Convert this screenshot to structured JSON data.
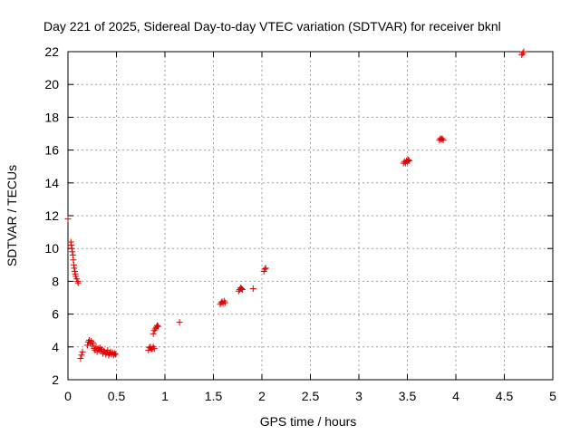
{
  "chart_data": {
    "type": "scatter",
    "title": "Day 221 of 2025, Sidereal Day-to-day VTEC variation (SDTVAR) for receiver bknl",
    "xlabel": "GPS time / hours",
    "ylabel": "SDTVAR / TECUs",
    "xlim": [
      0,
      5
    ],
    "ylim": [
      2,
      22
    ],
    "grid": true,
    "marker": "+",
    "color": "#e00000",
    "x_ticks": [
      "0",
      "0.5",
      "1",
      "1.5",
      "2",
      "2.5",
      "3",
      "3.5",
      "4",
      "4.5",
      "5"
    ],
    "y_ticks": [
      "2",
      "4",
      "6",
      "8",
      "10",
      "12",
      "14",
      "16",
      "18",
      "20",
      "22"
    ],
    "series": [
      {
        "name": "bknl",
        "points": [
          [
            0.0,
            11.8
          ],
          [
            0.03,
            10.4
          ],
          [
            0.035,
            10.2
          ],
          [
            0.04,
            10.0
          ],
          [
            0.045,
            9.8
          ],
          [
            0.05,
            9.6
          ],
          [
            0.055,
            9.3
          ],
          [
            0.06,
            9.0
          ],
          [
            0.065,
            8.8
          ],
          [
            0.07,
            8.6
          ],
          [
            0.075,
            8.45
          ],
          [
            0.08,
            8.3
          ],
          [
            0.09,
            8.15
          ],
          [
            0.1,
            8.0
          ],
          [
            0.105,
            7.9
          ],
          [
            0.13,
            3.3
          ],
          [
            0.14,
            3.5
          ],
          [
            0.15,
            3.7
          ],
          [
            0.2,
            4.1
          ],
          [
            0.21,
            4.3
          ],
          [
            0.22,
            4.4
          ],
          [
            0.23,
            4.2
          ],
          [
            0.24,
            4.35
          ],
          [
            0.25,
            4.1
          ],
          [
            0.26,
            4.25
          ],
          [
            0.27,
            3.9
          ],
          [
            0.28,
            3.8
          ],
          [
            0.29,
            4.0
          ],
          [
            0.3,
            3.7
          ],
          [
            0.31,
            3.9
          ],
          [
            0.32,
            3.8
          ],
          [
            0.33,
            3.95
          ],
          [
            0.34,
            3.75
          ],
          [
            0.35,
            3.85
          ],
          [
            0.36,
            3.6
          ],
          [
            0.37,
            3.75
          ],
          [
            0.38,
            3.7
          ],
          [
            0.39,
            3.55
          ],
          [
            0.4,
            3.65
          ],
          [
            0.41,
            3.8
          ],
          [
            0.42,
            3.5
          ],
          [
            0.43,
            3.6
          ],
          [
            0.44,
            3.7
          ],
          [
            0.45,
            3.55
          ],
          [
            0.46,
            3.65
          ],
          [
            0.47,
            3.5
          ],
          [
            0.48,
            3.6
          ],
          [
            0.49,
            3.55
          ],
          [
            0.83,
            3.8
          ],
          [
            0.84,
            3.95
          ],
          [
            0.85,
            4.0
          ],
          [
            0.86,
            3.85
          ],
          [
            0.87,
            3.9
          ],
          [
            0.88,
            4.0
          ],
          [
            0.89,
            3.9
          ],
          [
            0.88,
            4.8
          ],
          [
            0.89,
            5.0
          ],
          [
            0.9,
            5.1
          ],
          [
            0.91,
            5.2
          ],
          [
            0.92,
            5.3
          ],
          [
            0.93,
            5.25
          ],
          [
            1.15,
            5.5
          ],
          [
            1.57,
            6.6
          ],
          [
            1.58,
            6.7
          ],
          [
            1.59,
            6.75
          ],
          [
            1.6,
            6.65
          ],
          [
            1.61,
            6.8
          ],
          [
            1.62,
            6.7
          ],
          [
            1.76,
            7.4
          ],
          [
            1.77,
            7.5
          ],
          [
            1.78,
            7.6
          ],
          [
            1.79,
            7.55
          ],
          [
            1.8,
            7.5
          ],
          [
            1.91,
            7.55
          ],
          [
            2.02,
            8.6
          ],
          [
            2.03,
            8.75
          ],
          [
            2.04,
            8.8
          ],
          [
            3.46,
            15.2
          ],
          [
            3.47,
            15.3
          ],
          [
            3.48,
            15.2
          ],
          [
            3.49,
            15.35
          ],
          [
            3.5,
            15.3
          ],
          [
            3.51,
            15.4
          ],
          [
            3.52,
            15.35
          ],
          [
            3.83,
            16.6
          ],
          [
            3.84,
            16.7
          ],
          [
            3.85,
            16.65
          ],
          [
            3.86,
            16.7
          ],
          [
            3.87,
            16.6
          ],
          [
            4.68,
            21.8
          ],
          [
            4.69,
            21.9
          ],
          [
            4.7,
            22.0
          ]
        ]
      }
    ]
  }
}
